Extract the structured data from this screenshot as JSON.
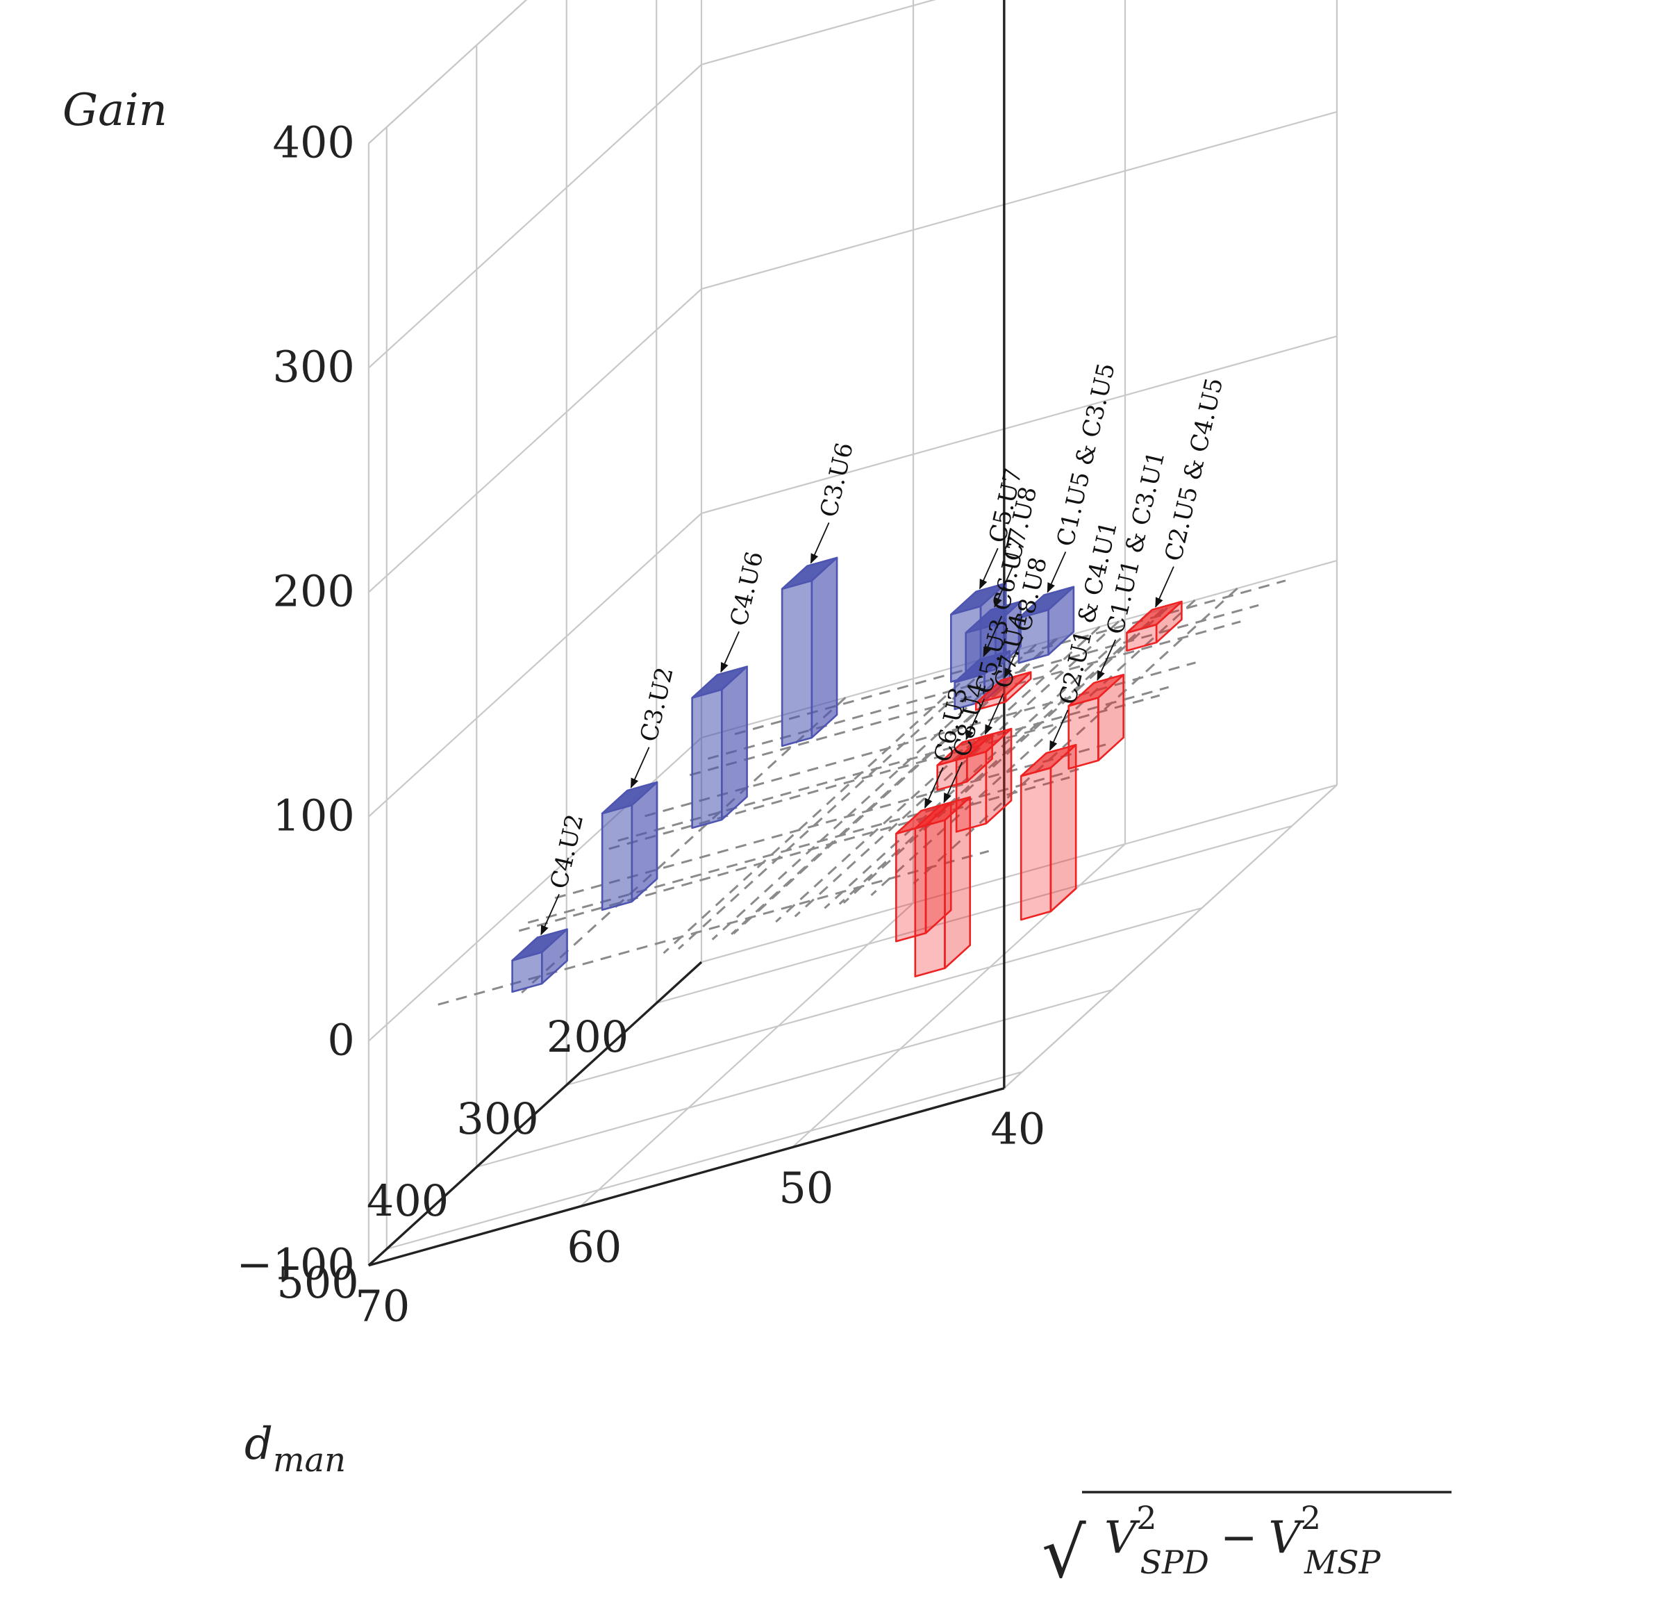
{
  "chart_data": {
    "type": "3d-bar",
    "title": "",
    "zlabel": "Gain",
    "ylabel": "d",
    "ylabel_sub": "man",
    "xlabel": {
      "radical": "√",
      "v1": "V",
      "v1_sup": "2",
      "v1_sub": "SPD",
      "minus": "−",
      "v2": "V",
      "v2_sup": "2",
      "v2_sub": "MSP"
    },
    "x_ticks": [
      70,
      60,
      50,
      40
    ],
    "y_ticks": [
      200,
      300,
      400,
      500
    ],
    "z_ticks": [
      "400",
      "300",
      "200",
      "100",
      "0",
      "−100"
    ],
    "xlim": [
      70,
      40
    ],
    "ylim": [
      150,
      520
    ],
    "zlim": [
      -100,
      400
    ],
    "colors": {
      "positive": "#4d55b0",
      "negative": "#ee2222"
    },
    "bars": [
      {
        "label": "C3.U6",
        "x": 63.2,
        "y": 190,
        "value": 70
      },
      {
        "label": "C4.U6",
        "x": 63.2,
        "y": 290,
        "value": 58
      },
      {
        "label": "C3.U2",
        "x": 63.2,
        "y": 390,
        "value": 43
      },
      {
        "label": "C4.U2",
        "x": 63.2,
        "y": 490,
        "value": 14
      },
      {
        "label": "C5.U7",
        "x": 56.5,
        "y": 160,
        "value": 30
      },
      {
        "label": "C7.U8",
        "x": 55.8,
        "y": 160,
        "value": 20
      },
      {
        "label": "C1.U5 & C3.U5",
        "x": 53.3,
        "y": 160,
        "value": 20
      },
      {
        "label": "C6.U7",
        "x": 54.2,
        "y": 210,
        "value": 12
      },
      {
        "label": "C8.U8",
        "x": 53.2,
        "y": 210,
        "value": -3
      },
      {
        "label": "C2.U5 & C4.U5",
        "x": 48.2,
        "y": 160,
        "value": -8
      },
      {
        "label": "C5.U3",
        "x": 51.2,
        "y": 300,
        "value": -11
      },
      {
        "label": "C7.U4",
        "x": 50.3,
        "y": 300,
        "value": -32
      },
      {
        "label": "C1.U1 & C3.U1",
        "x": 46.7,
        "y": 260,
        "value": -28
      },
      {
        "label": "C6.U3",
        "x": 48.9,
        "y": 400,
        "value": -48
      },
      {
        "label": "C8.U4",
        "x": 48.0,
        "y": 400,
        "value": -66
      },
      {
        "label": "C2.U1 & C4.U1",
        "x": 44.7,
        "y": 360,
        "value": -64
      }
    ]
  }
}
